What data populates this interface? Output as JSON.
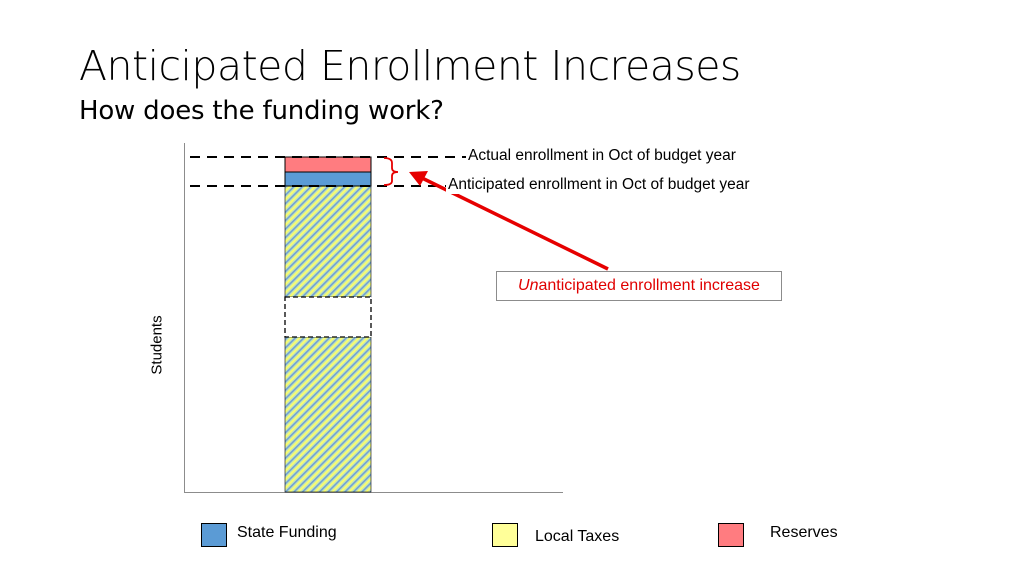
{
  "slide": {
    "title": "Anticipated Enrollment Increases",
    "subtitle": "How does the funding work?"
  },
  "chart": {
    "ylabel": "Students",
    "actual_label": "Actual enrollment in Oct of budget year",
    "anticipated_label": "Anticipated enrollment in Oct of budget year",
    "callout_prefix": "Un",
    "callout_rest": "anticipated enrollment increase",
    "callout_color": "#e00000",
    "arrow_color": "#e60000"
  },
  "legend": {
    "items": [
      {
        "label": "State Funding",
        "color": "#5b9bd5"
      },
      {
        "label": "Local Taxes",
        "color": "#ffff99"
      },
      {
        "label": "Reserves",
        "color": "#ff7c80"
      }
    ]
  }
}
